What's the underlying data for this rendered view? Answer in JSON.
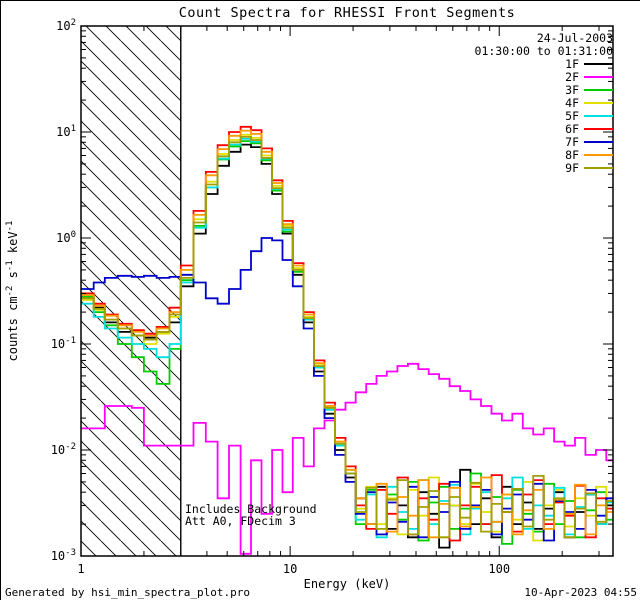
{
  "footer": {
    "left": "Generated by hsi_min_spectra_plot.pro",
    "right": "10-Apr-2023 04:55"
  },
  "chart_data": {
    "type": "line",
    "title": "Count Spectra for RHESSI Front Segments",
    "xlabel": "Energy (keV)",
    "ylabel": "counts cm^-2 s^-1 keV^-1",
    "ylabel_parts": [
      {
        "t": "counts cm",
        "sup": false
      },
      {
        "t": "-2",
        "sup": true
      },
      {
        "t": " s",
        "sup": false
      },
      {
        "t": "-1",
        "sup": true
      },
      {
        "t": " keV",
        "sup": false
      },
      {
        "t": "-1",
        "sup": true
      }
    ],
    "xscale": "log",
    "yscale": "log",
    "xlim": [
      1,
      350
    ],
    "ylim": [
      0.001,
      100
    ],
    "x_ticks": [
      {
        "value": 1,
        "label": "1"
      },
      {
        "value": 10,
        "label": "10"
      },
      {
        "value": 100,
        "label": "100"
      }
    ],
    "y_tick_exponents": [
      2,
      1,
      0,
      -1,
      -2,
      -3
    ],
    "legend_header": {
      "date": "24-Jul-2003",
      "interval": "01:30:00 to 01:31:00"
    },
    "annotations": [
      "Includes Background",
      "Att A0, FDecim 3"
    ],
    "hatch_region": {
      "x0": 1,
      "x1": 3
    },
    "energies": [
      1.0,
      1.15,
      1.3,
      1.5,
      1.75,
      2.0,
      2.3,
      2.65,
      3.0,
      3.45,
      3.95,
      4.5,
      5.1,
      5.8,
      6.5,
      7.3,
      8.2,
      9.2,
      10.3,
      11.6,
      13,
      14.6,
      16.4,
      18.4,
      20.6,
      23.1,
      25.9,
      29,
      32.6,
      36.6,
      41,
      46,
      51.6,
      57.9,
      65,
      72.9,
      81.8,
      91.8,
      103,
      115.5,
      129.6,
      145.4,
      163.1,
      183,
      205.3,
      230.3,
      258.4,
      289.9,
      325
    ],
    "series": [
      {
        "name": "1F",
        "color": "#000000",
        "counts": [
          0.3,
          0.22,
          0.16,
          0.13,
          0.12,
          0.115,
          0.13,
          0.16,
          0.35,
          1.1,
          2.6,
          4.8,
          6.5,
          7.6,
          7.2,
          5.0,
          2.6,
          1.1,
          0.45,
          0.16,
          0.055,
          0.022,
          0.01,
          0.0055,
          0.0035,
          0.002,
          0.0045,
          0.0018,
          0.003,
          0.0015,
          0.004,
          0.0025,
          0.0012,
          0.003,
          0.0065,
          0.002,
          0.0035,
          0.0015,
          0.0045,
          0.002,
          0.0032,
          0.0018,
          0.0028,
          0.004,
          0.0015,
          0.0026,
          0.0038,
          0.002,
          0.003
        ]
      },
      {
        "name": "2F",
        "color": "#ff00ff",
        "counts": [
          0.016,
          0.016,
          0.026,
          0.026,
          0.025,
          0.011,
          0.011,
          0.011,
          0.011,
          0.018,
          0.012,
          0.0035,
          0.011,
          0.00105,
          0.008,
          0.0025,
          0.01,
          0.004,
          0.013,
          0.007,
          0.016,
          0.019,
          0.024,
          0.028,
          0.035,
          0.042,
          0.05,
          0.055,
          0.062,
          0.065,
          0.058,
          0.052,
          0.047,
          0.04,
          0.036,
          0.03,
          0.026,
          0.022,
          0.019,
          0.022,
          0.016,
          0.014,
          0.016,
          0.012,
          0.011,
          0.013,
          0.009,
          0.01,
          0.008
        ]
      },
      {
        "name": "3F",
        "color": "#00cc00",
        "counts": [
          0.28,
          0.2,
          0.15,
          0.1,
          0.075,
          0.055,
          0.042,
          0.09,
          0.4,
          1.3,
          3.0,
          5.5,
          7.3,
          8.2,
          7.8,
          5.4,
          2.8,
          1.15,
          0.48,
          0.17,
          0.06,
          0.024,
          0.011,
          0.006,
          0.002,
          0.0042,
          0.0016,
          0.0038,
          0.0022,
          0.005,
          0.0014,
          0.0032,
          0.0045,
          0.0018,
          0.0028,
          0.006,
          0.002,
          0.0036,
          0.0013,
          0.0042,
          0.0025,
          0.0017,
          0.0048,
          0.002,
          0.0033,
          0.0015,
          0.0027,
          0.004,
          0.0022
        ]
      },
      {
        "name": "4F",
        "color": "#e0e000",
        "counts": [
          0.26,
          0.21,
          0.17,
          0.14,
          0.12,
          0.1,
          0.125,
          0.18,
          0.45,
          1.5,
          3.4,
          6.2,
          8.4,
          9.4,
          8.8,
          6.0,
          3.1,
          1.3,
          0.52,
          0.18,
          0.065,
          0.026,
          0.012,
          0.0065,
          0.0028,
          0.0045,
          0.002,
          0.0035,
          0.0016,
          0.0042,
          0.0024,
          0.0055,
          0.0015,
          0.003,
          0.002,
          0.0048,
          0.0026,
          0.0017,
          0.0038,
          0.0022,
          0.005,
          0.0014,
          0.003,
          0.0042,
          0.0019,
          0.0035,
          0.0024,
          0.0045,
          0.0028
        ]
      },
      {
        "name": "5F",
        "color": "#00e0e0",
        "counts": [
          0.24,
          0.18,
          0.14,
          0.115,
          0.1,
          0.09,
          0.075,
          0.1,
          0.38,
          1.25,
          3.0,
          5.6,
          7.6,
          8.6,
          8.1,
          5.6,
          2.9,
          1.2,
          0.5,
          0.17,
          0.06,
          0.024,
          0.011,
          0.006,
          0.0022,
          0.0038,
          0.0015,
          0.0045,
          0.0026,
          0.0018,
          0.0052,
          0.002,
          0.0033,
          0.0047,
          0.0016,
          0.0028,
          0.004,
          0.0021,
          0.0035,
          0.0055,
          0.0018,
          0.003,
          0.0024,
          0.0044,
          0.0016,
          0.0029,
          0.0038,
          0.002,
          0.0032
        ]
      },
      {
        "name": "6F",
        "color": "#ff0000",
        "counts": [
          0.3,
          0.24,
          0.19,
          0.155,
          0.135,
          0.125,
          0.145,
          0.22,
          0.55,
          1.8,
          4.2,
          7.5,
          10.0,
          11.2,
          10.4,
          7.0,
          3.5,
          1.45,
          0.58,
          0.2,
          0.07,
          0.028,
          0.013,
          0.007,
          0.003,
          0.0018,
          0.0042,
          0.0025,
          0.0055,
          0.0016,
          0.0035,
          0.0022,
          0.0048,
          0.0014,
          0.003,
          0.0045,
          0.002,
          0.0058,
          0.0026,
          0.0017,
          0.0038,
          0.0052,
          0.002,
          0.0032,
          0.0024,
          0.0046,
          0.0015,
          0.0035,
          0.0028
        ]
      },
      {
        "name": "7F",
        "color": "#0000cc",
        "counts": [
          0.33,
          0.38,
          0.42,
          0.44,
          0.43,
          0.44,
          0.42,
          0.43,
          0.45,
          0.38,
          0.27,
          0.24,
          0.33,
          0.5,
          0.75,
          1.0,
          0.95,
          0.62,
          0.35,
          0.14,
          0.05,
          0.02,
          0.009,
          0.005,
          0.0025,
          0.004,
          0.0016,
          0.0032,
          0.0021,
          0.0045,
          0.0015,
          0.0036,
          0.0026,
          0.005,
          0.0018,
          0.003,
          0.0042,
          0.0016,
          0.0028,
          0.0038,
          0.0022,
          0.0048,
          0.0014,
          0.0033,
          0.0026,
          0.0018,
          0.0042,
          0.0024,
          0.0035
        ]
      },
      {
        "name": "8F",
        "color": "#ff9900",
        "counts": [
          0.29,
          0.23,
          0.185,
          0.15,
          0.13,
          0.12,
          0.14,
          0.2,
          0.5,
          1.65,
          3.9,
          6.9,
          9.2,
          10.3,
          9.6,
          6.5,
          3.3,
          1.35,
          0.55,
          0.19,
          0.066,
          0.026,
          0.012,
          0.0065,
          0.0035,
          0.002,
          0.0048,
          0.0017,
          0.0036,
          0.0024,
          0.0052,
          0.0015,
          0.0031,
          0.0044,
          0.0019,
          0.0029,
          0.0055,
          0.0021,
          0.0038,
          0.0016,
          0.0027,
          0.0042,
          0.0018,
          0.0034,
          0.0025,
          0.0047,
          0.0016,
          0.003,
          0.0026
        ]
      },
      {
        "name": "9F",
        "color": "#a0a000",
        "counts": [
          0.27,
          0.215,
          0.17,
          0.14,
          0.12,
          0.11,
          0.13,
          0.19,
          0.42,
          1.4,
          3.2,
          5.9,
          8.0,
          9.0,
          8.4,
          5.7,
          2.95,
          1.25,
          0.5,
          0.175,
          0.062,
          0.025,
          0.0115,
          0.006,
          0.0026,
          0.0044,
          0.0018,
          0.0034,
          0.0052,
          0.0016,
          0.0029,
          0.0041,
          0.0015,
          0.0036,
          0.0023,
          0.0049,
          0.0017,
          0.0031,
          0.0026,
          0.0043,
          0.0019,
          0.0057,
          0.0022,
          0.0035,
          0.0015,
          0.0028,
          0.0039,
          0.0021,
          0.0033
        ]
      }
    ]
  }
}
